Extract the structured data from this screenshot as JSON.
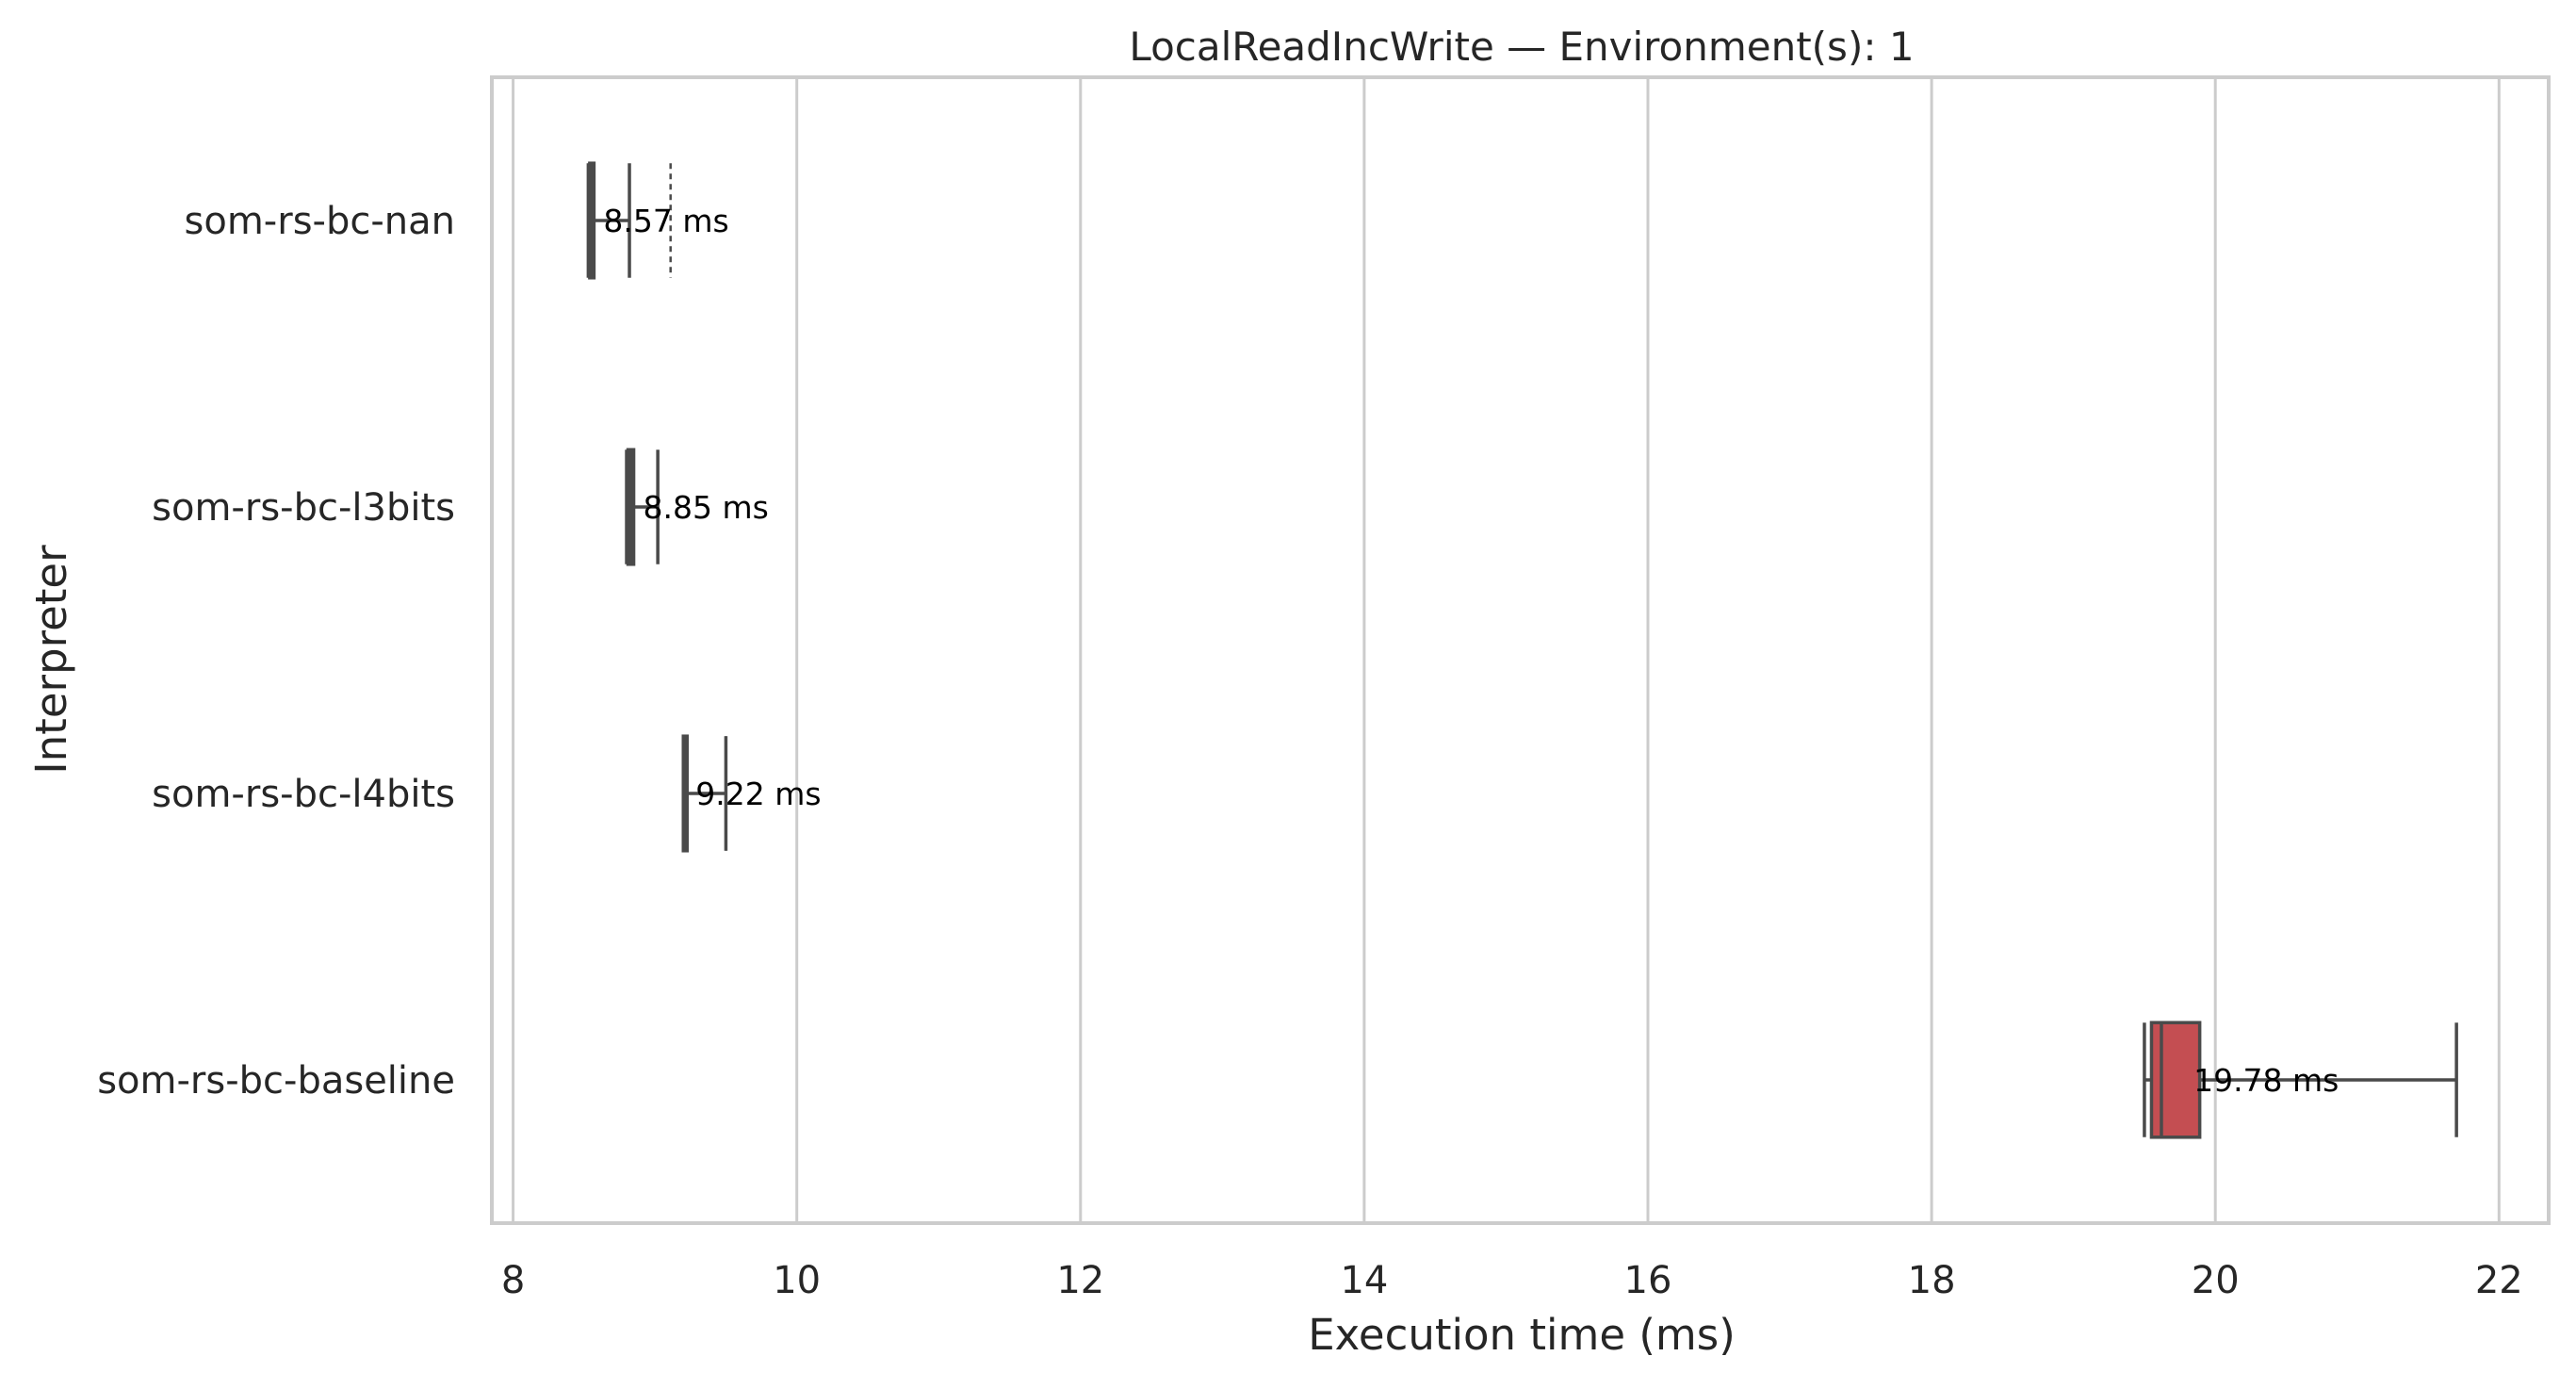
{
  "chart_data": {
    "type": "boxplot",
    "orientation": "horizontal",
    "title": "LocalReadIncWrite — Environment(s): 1",
    "xlabel": "Execution time (ms)",
    "ylabel": "Interpreter",
    "xlim": [
      7.85,
      22.35
    ],
    "xticks": [
      8,
      10,
      12,
      14,
      16,
      18,
      20,
      22
    ],
    "xtick_labels": [
      "8",
      "10",
      "12",
      "14",
      "16",
      "18",
      "20",
      "22"
    ],
    "grid": "vertical",
    "categories": [
      "som-rs-bc-nan",
      "som-rs-bc-l3bits",
      "som-rs-bc-l4bits",
      "som-rs-bc-baseline"
    ],
    "boxes": [
      {
        "category": "som-rs-bc-nan",
        "whisker_low": 8.53,
        "q1": 8.54,
        "median": 8.55,
        "q3": 8.57,
        "whisker_high": 8.82,
        "outliers": [
          9.11
        ],
        "color": "#4c72b0",
        "label": "8.57 ms"
      },
      {
        "category": "som-rs-bc-l3bits",
        "whisker_low": 8.8,
        "q1": 8.81,
        "median": 8.83,
        "q3": 8.85,
        "whisker_high": 9.02,
        "outliers": [],
        "color": "#dd8452",
        "label": "8.85 ms"
      },
      {
        "category": "som-rs-bc-l4bits",
        "whisker_low": 9.2,
        "q1": 9.2,
        "median": 9.21,
        "q3": 9.22,
        "whisker_high": 9.5,
        "outliers": [
          9.5
        ],
        "color": "#55a868",
        "label": "9.22 ms"
      },
      {
        "category": "som-rs-bc-baseline",
        "whisker_low": 19.5,
        "q1": 19.55,
        "median": 19.62,
        "q3": 19.89,
        "whisker_high": 21.7,
        "outliers": [],
        "color": "#c44e52",
        "label": "19.78 ms",
        "label_x": 19.78
      }
    ],
    "annotation_x": [
      8.57,
      8.85,
      9.22,
      19.78
    ]
  }
}
